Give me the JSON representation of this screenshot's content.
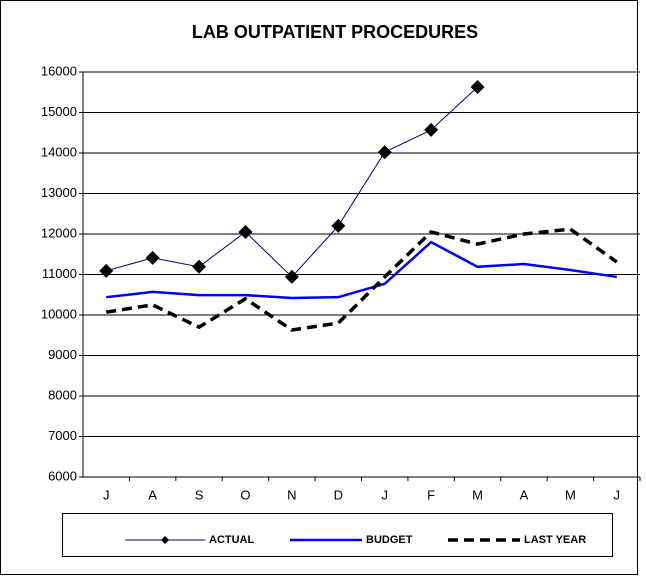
{
  "chart_data": {
    "type": "line",
    "title": "LAB OUTPATIENT PROCEDURES",
    "categories": [
      "J",
      "A",
      "S",
      "O",
      "N",
      "D",
      "J",
      "F",
      "M",
      "A",
      "M",
      "J"
    ],
    "series": [
      {
        "name": "ACTUAL",
        "color": "#000080",
        "marker": "diamond",
        "values": [
          11090,
          11410,
          11190,
          12050,
          10940,
          12200,
          14020,
          14570,
          15630,
          null,
          null,
          null
        ]
      },
      {
        "name": "BUDGET",
        "color": "#0000ff",
        "values": [
          10440,
          10570,
          10490,
          10490,
          10420,
          10440,
          10770,
          11800,
          11190,
          11260,
          11110,
          10940
        ]
      },
      {
        "name": "LAST YEAR",
        "color": "#000000",
        "dashed": true,
        "values": [
          10070,
          10250,
          9700,
          10400,
          9630,
          9800,
          10940,
          12050,
          11750,
          12000,
          12120,
          11310
        ]
      }
    ],
    "ylim": [
      6000,
      16000
    ],
    "yticks": [
      6000,
      7000,
      8000,
      9000,
      10000,
      11000,
      12000,
      13000,
      14000,
      15000,
      16000
    ],
    "grid": true,
    "legend": "bottom"
  }
}
